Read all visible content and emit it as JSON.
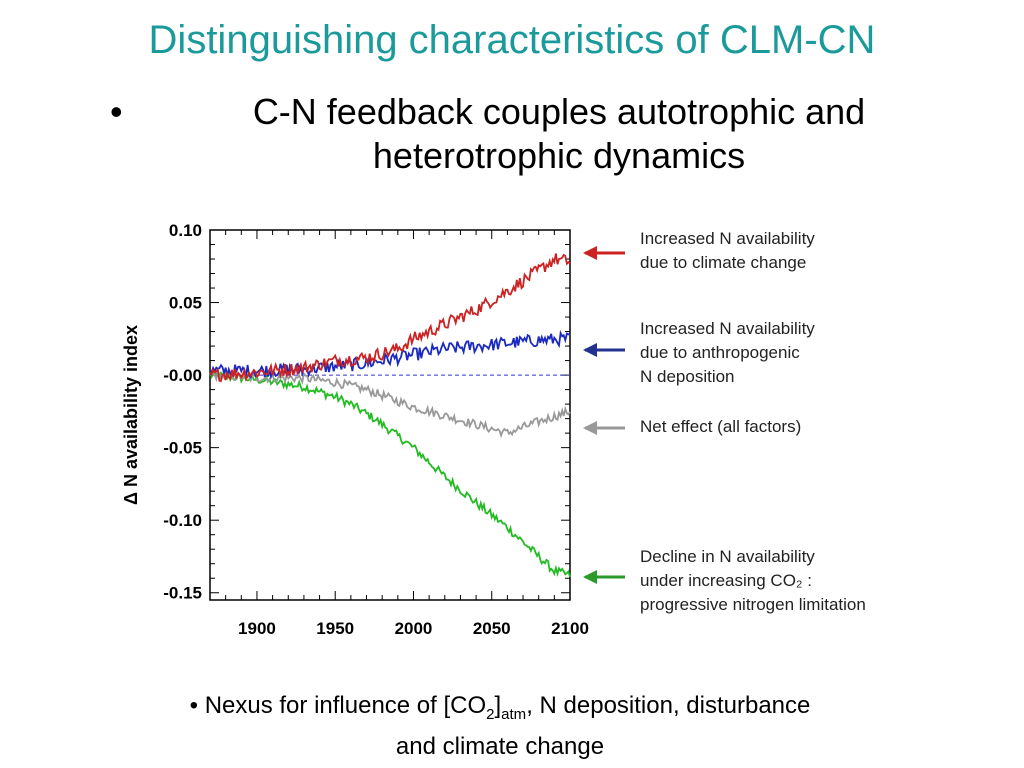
{
  "slide": {
    "title": "Distinguishing characteristics of CLM-CN",
    "bullet_mark": "•",
    "bullet_text": "C-N feedback couples autotrophic and heterotrophic dynamics"
  },
  "note": {
    "prefix": "• Nexus for influence of [CO",
    "sub1": "2",
    "mid": "]",
    "sub2": "atm",
    "suffix": ", N deposition, disturbance",
    "line2": "and climate change"
  },
  "chart_data": {
    "type": "line",
    "ylabel": "Δ N availability index",
    "xlim": [
      1870,
      2100
    ],
    "ylim": [
      -0.155,
      0.1
    ],
    "xticks": [
      1900,
      1950,
      2000,
      2050,
      2100
    ],
    "yticks": [
      0.1,
      0.05,
      -0.0,
      -0.05,
      -0.1,
      -0.15
    ],
    "ytick_labels": [
      "0.10",
      "0.05",
      "-0.00",
      "-0.05",
      "-0.10",
      "-0.15"
    ],
    "zero_line": {
      "y": 0,
      "color": "#3333cc",
      "style": "dashed"
    },
    "grid": false,
    "series": [
      {
        "color": "#cc2222",
        "label_lines": [
          "Increased N availability",
          "due to climate change"
        ],
        "arrow_color": "#cc2222",
        "x": [
          1870,
          1900,
          1930,
          1950,
          1970,
          1990,
          2000,
          2020,
          2040,
          2060,
          2080,
          2090,
          2100
        ],
        "y": [
          0.0,
          0.002,
          0.005,
          0.01,
          0.012,
          0.018,
          0.025,
          0.035,
          0.045,
          0.058,
          0.072,
          0.08,
          0.078
        ]
      },
      {
        "color": "#1a2ac0",
        "label_lines": [
          "Increased N availability",
          "due to anthropogenic",
          "N deposition"
        ],
        "arrow_color": "#23318f",
        "x": [
          1870,
          1900,
          1930,
          1950,
          1970,
          1990,
          2000,
          2020,
          2040,
          2060,
          2080,
          2100
        ],
        "y": [
          0.003,
          0.003,
          0.004,
          0.006,
          0.008,
          0.012,
          0.014,
          0.018,
          0.02,
          0.022,
          0.024,
          0.025
        ]
      },
      {
        "color": "#999999",
        "label_lines": [
          "Net effect (all factors)"
        ],
        "arrow_color": "#999999",
        "x": [
          1870,
          1900,
          1930,
          1950,
          1970,
          1990,
          2000,
          2020,
          2040,
          2060,
          2080,
          2100
        ],
        "y": [
          0.0,
          -0.002,
          -0.002,
          -0.005,
          -0.01,
          -0.018,
          -0.022,
          -0.028,
          -0.034,
          -0.04,
          -0.032,
          -0.025
        ]
      },
      {
        "color": "#22bb22",
        "label_lines": [
          "Decline in N availability",
          "under increasing CO₂ :",
          "progressive nitrogen limitation"
        ],
        "arrow_color": "#2a9a2a",
        "x": [
          1870,
          1900,
          1930,
          1950,
          1960,
          1975,
          2000,
          2020,
          2040,
          2060,
          2080,
          2090,
          2100
        ],
        "y": [
          0.0,
          -0.003,
          -0.008,
          -0.015,
          -0.02,
          -0.03,
          -0.05,
          -0.07,
          -0.088,
          -0.105,
          -0.125,
          -0.135,
          -0.138
        ]
      }
    ]
  }
}
